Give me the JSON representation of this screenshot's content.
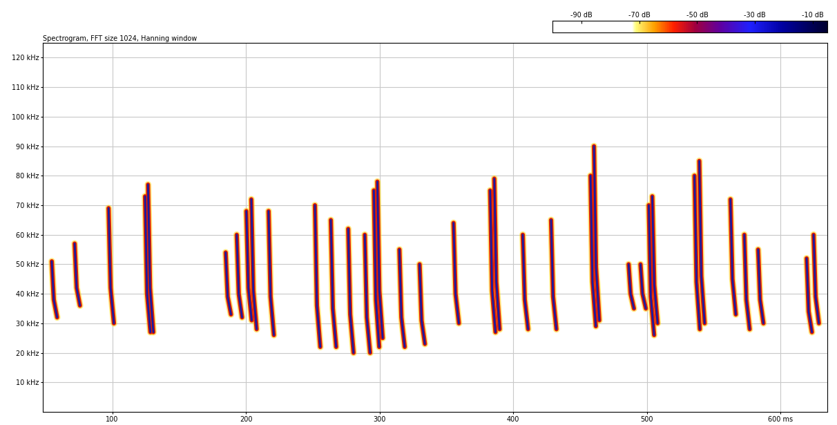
{
  "chart_data": {
    "type": "spectrogram",
    "title": "Spectrogram, FFT size 1024, Hanning window",
    "xlim": [
      48,
      635
    ],
    "xticks": [
      100,
      200,
      300,
      400,
      500,
      {
        "value": 600,
        "label": "600 ms"
      }
    ],
    "ylim": [
      0,
      125
    ],
    "yticks": [
      {
        "value": 10,
        "label": "10 kHz"
      },
      {
        "value": 20,
        "label": "20 kHz"
      },
      {
        "value": 30,
        "label": "30 kHz"
      },
      {
        "value": 40,
        "label": "40 kHz"
      },
      {
        "value": 50,
        "label": "50 kHz"
      },
      {
        "value": 60,
        "label": "60 kHz"
      },
      {
        "value": 70,
        "label": "70 kHz"
      },
      {
        "value": 80,
        "label": "80 kHz"
      },
      {
        "value": 90,
        "label": "90 kHz"
      },
      {
        "value": 100,
        "label": "100 kHz"
      },
      {
        "value": 110,
        "label": "110 kHz"
      },
      {
        "value": 120,
        "label": "120 kHz"
      }
    ],
    "grid": true,
    "color": "#1a1aa0",
    "colorbar": {
      "lim": [
        -100,
        -5
      ],
      "ticks": [
        {
          "value": -90,
          "label": "-90 dB"
        },
        {
          "value": -70,
          "label": "-70 dB"
        },
        {
          "value": -50,
          "label": "-50 dB"
        },
        {
          "value": -30,
          "label": "-30 dB"
        },
        {
          "value": -10,
          "label": "-10 dB"
        }
      ]
    },
    "calls": [
      {
        "x": [
          54.7,
          56.2,
          58.7
        ],
        "y": [
          51,
          38,
          32
        ]
      },
      {
        "x": [
          71.8,
          73.3,
          75.8
        ],
        "y": [
          57,
          42,
          36
        ]
      },
      {
        "x": [
          97.2,
          98.7,
          101.2
        ],
        "y": [
          69,
          42,
          30
        ]
      },
      {
        "x": [
          124.5,
          126.0,
          128.5
        ],
        "y": [
          73,
          40,
          27
        ]
      },
      {
        "x": [
          126.7,
          128.2,
          130.7
        ],
        "y": [
          77,
          42,
          27
        ]
      },
      {
        "x": [
          184.8,
          186.3,
          188.8
        ],
        "y": [
          54,
          39,
          33
        ]
      },
      {
        "x": [
          193.1,
          194.6,
          197.1
        ],
        "y": [
          60,
          40,
          32
        ]
      },
      {
        "x": [
          200.3,
          201.8,
          204.3
        ],
        "y": [
          68,
          42,
          31
        ]
      },
      {
        "x": [
          204.0,
          205.5,
          208.0
        ],
        "y": [
          72,
          41,
          28
        ]
      },
      {
        "x": [
          216.9,
          218.4,
          220.9
        ],
        "y": [
          68,
          39,
          26
        ]
      },
      {
        "x": [
          251.6,
          253.1,
          255.6
        ],
        "y": [
          70,
          36,
          22
        ]
      },
      {
        "x": [
          263.5,
          265.0,
          267.5
        ],
        "y": [
          65,
          35,
          22
        ]
      },
      {
        "x": [
          276.5,
          278.0,
          280.5
        ],
        "y": [
          62,
          33,
          20
        ]
      },
      {
        "x": [
          288.9,
          290.4,
          292.9
        ],
        "y": [
          60,
          32,
          20
        ]
      },
      {
        "x": [
          295.7,
          297.2,
          299.7
        ],
        "y": [
          75,
          38,
          22
        ]
      },
      {
        "x": [
          298.3,
          299.8,
          302.3
        ],
        "y": [
          78,
          41,
          25
        ]
      },
      {
        "x": [
          314.8,
          316.3,
          318.8
        ],
        "y": [
          55,
          32,
          22
        ]
      },
      {
        "x": [
          329.9,
          331.4,
          333.9
        ],
        "y": [
          50,
          31,
          23
        ]
      },
      {
        "x": [
          355.3,
          356.8,
          359.3
        ],
        "y": [
          64,
          40,
          30
        ]
      },
      {
        "x": [
          382.7,
          384.2,
          386.7
        ],
        "y": [
          75,
          41,
          27
        ]
      },
      {
        "x": [
          385.8,
          387.3,
          389.8
        ],
        "y": [
          79,
          44,
          28
        ]
      },
      {
        "x": [
          407.1,
          408.6,
          411.1
        ],
        "y": [
          60,
          38,
          28
        ]
      },
      {
        "x": [
          428.3,
          429.8,
          432.3
        ],
        "y": [
          65,
          39,
          28
        ]
      },
      {
        "x": [
          457.8,
          459.3,
          461.8
        ],
        "y": [
          80,
          44,
          29
        ]
      },
      {
        "x": [
          460.4,
          461.9,
          464.4
        ],
        "y": [
          90,
          49,
          31
        ]
      },
      {
        "x": [
          486.3,
          487.8,
          490.3
        ],
        "y": [
          50,
          40,
          35
        ]
      },
      {
        "x": [
          495.2,
          496.7,
          499.2
        ],
        "y": [
          50,
          40,
          35
        ]
      },
      {
        "x": [
          501.4,
          502.9,
          505.4
        ],
        "y": [
          70,
          39,
          26
        ]
      },
      {
        "x": [
          504.0,
          505.5,
          508.0
        ],
        "y": [
          73,
          43,
          30
        ]
      },
      {
        "x": [
          535.6,
          537.1,
          539.6
        ],
        "y": [
          80,
          44,
          28
        ]
      },
      {
        "x": [
          539.2,
          540.7,
          543.2
        ],
        "y": [
          85,
          46,
          30
        ]
      },
      {
        "x": [
          562.5,
          564.0,
          566.5
        ],
        "y": [
          72,
          45,
          33
        ]
      },
      {
        "x": [
          572.9,
          574.4,
          576.9
        ],
        "y": [
          60,
          38,
          28
        ]
      },
      {
        "x": [
          583.2,
          584.7,
          587.2
        ],
        "y": [
          55,
          38,
          30
        ]
      },
      {
        "x": [
          619.5,
          621.0,
          623.5
        ],
        "y": [
          52,
          34,
          27
        ]
      },
      {
        "x": [
          624.7,
          626.2,
          628.7
        ],
        "y": [
          60,
          39,
          30
        ]
      }
    ]
  }
}
